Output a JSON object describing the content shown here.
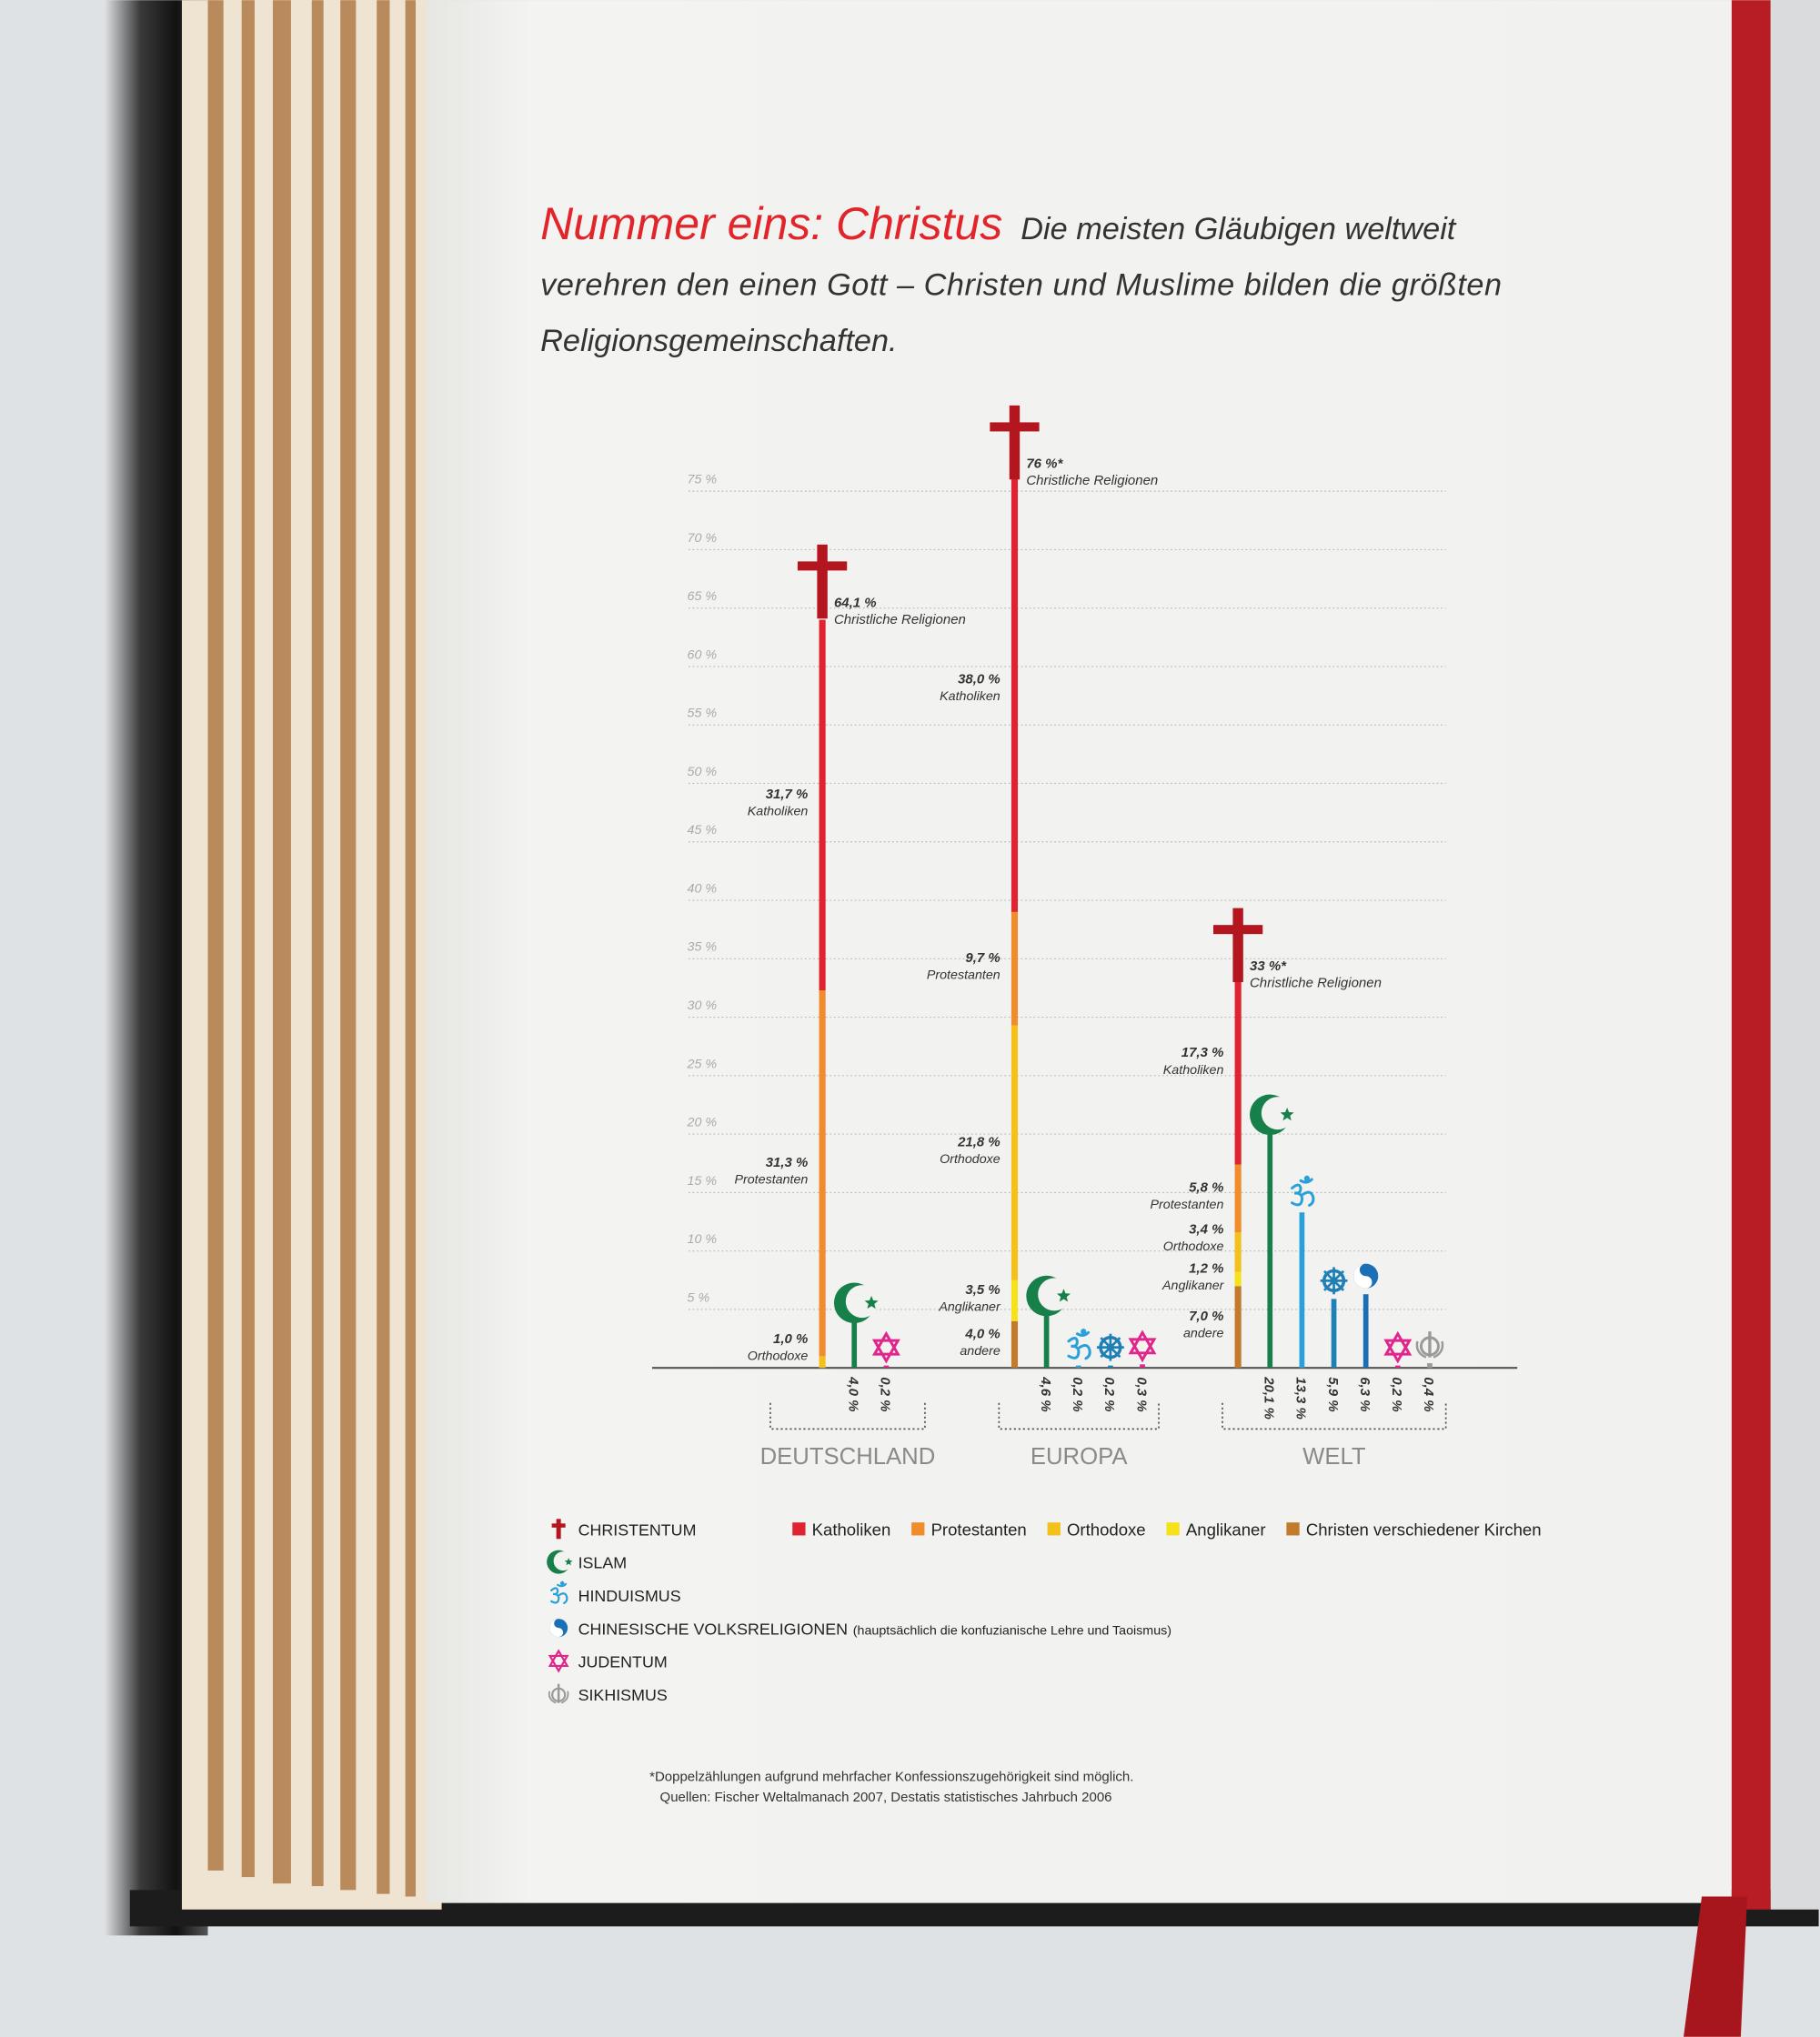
{
  "chart_data": {
    "type": "stacked-bar",
    "title": "Nummer eins: Christus",
    "subtitle": [
      "Die meisten Gläubigen weltweit",
      "verehren den einen Gott – Christen und Muslime bilden die größten",
      "Religionsgemeinschaften."
    ],
    "ylim": [
      0,
      75
    ],
    "yticks": [
      {
        "value": 5,
        "label": "5 %"
      },
      {
        "value": 10,
        "label": "10 %"
      },
      {
        "value": 15,
        "label": "15 %"
      },
      {
        "value": 20,
        "label": "20 %"
      },
      {
        "value": 25,
        "label": "25 %"
      },
      {
        "value": 30,
        "label": "30 %"
      },
      {
        "value": 35,
        "label": "35 %"
      },
      {
        "value": 40,
        "label": "40 %"
      },
      {
        "value": 45,
        "label": "45 %"
      },
      {
        "value": 50,
        "label": "50 %"
      },
      {
        "value": 55,
        "label": "55 %"
      },
      {
        "value": 60,
        "label": "60 %"
      },
      {
        "value": 65,
        "label": "65 %"
      },
      {
        "value": 70,
        "label": "70 %"
      },
      {
        "value": 75,
        "label": "75 %"
      }
    ],
    "grid": true,
    "groups": [
      {
        "name": "DEUTSCHLAND",
        "bars": [
          {
            "icon": "cross",
            "color": "#b3161f",
            "total": 64.1,
            "total_label": "64,1 %",
            "total_note": "Christliche Religionen",
            "segments": [
              {
                "value": 1.0,
                "value_label": "1,0 %",
                "label": "Orthodoxe",
                "color": "#f4c01c"
              },
              {
                "value": 31.3,
                "value_label": "31,3 %",
                "label": "Protestanten",
                "color": "#f08c2c"
              },
              {
                "value": 31.7,
                "value_label": "31,7 %",
                "label": "Katholiken",
                "color": "#e02331"
              }
            ]
          },
          {
            "icon": "crescent",
            "color": "#17804a",
            "value": 4.0,
            "value_label": "4,0 %"
          },
          {
            "icon": "star",
            "color": "#e0268c",
            "value": 0.2,
            "value_label": "0,2 %"
          }
        ]
      },
      {
        "name": "EUROPA",
        "bars": [
          {
            "icon": "cross",
            "color": "#b3161f",
            "total": 76,
            "total_label": "76 %*",
            "total_note": "Christliche Religionen",
            "segments": [
              {
                "value": 4.0,
                "value_label": "4,0 %",
                "label": "andere",
                "color": "#c27a2c"
              },
              {
                "value": 3.5,
                "value_label": "3,5 %",
                "label": "Anglikaner",
                "color": "#f6e21a"
              },
              {
                "value": 21.8,
                "value_label": "21,8 %",
                "label": "Orthodoxe",
                "color": "#f4c01c"
              },
              {
                "value": 9.7,
                "value_label": "9,7 %",
                "label": "Protestanten",
                "color": "#f08c2c"
              },
              {
                "value": 38.0,
                "value_label": "38,0 %",
                "label": "Katholiken",
                "color": "#e02331"
              }
            ]
          },
          {
            "icon": "crescent",
            "color": "#17804a",
            "value": 4.6,
            "value_label": "4,6 %"
          },
          {
            "icon": "om",
            "color": "#2aa0d8",
            "value": 0.2,
            "value_label": "0,2 %"
          },
          {
            "icon": "wheel",
            "color": "#1f7fb6",
            "value": 0.2,
            "value_label": "0,2 %"
          },
          {
            "icon": "star",
            "color": "#e0268c",
            "value": 0.3,
            "value_label": "0,3 %"
          }
        ]
      },
      {
        "name": "WELT",
        "bars": [
          {
            "icon": "cross",
            "color": "#b3161f",
            "total": 33,
            "total_label": "33 %*",
            "total_note": "Christliche Religionen",
            "segments": [
              {
                "value": 7.0,
                "value_label": "7,0 %",
                "label": "andere",
                "color": "#c27a2c"
              },
              {
                "value": 1.2,
                "value_label": "1,2 %",
                "label": "Anglikaner",
                "color": "#f6e21a"
              },
              {
                "value": 3.4,
                "value_label": "3,4 %",
                "label": "Orthodoxe",
                "color": "#f4c01c"
              },
              {
                "value": 5.8,
                "value_label": "5,8 %",
                "label": "Protestanten",
                "color": "#f08c2c"
              },
              {
                "value": 17.3,
                "value_label": "17,3 %",
                "label": "Katholiken",
                "color": "#e02331"
              }
            ]
          },
          {
            "icon": "crescent",
            "color": "#17804a",
            "value": 20.1,
            "value_label": "20,1 %"
          },
          {
            "icon": "om",
            "color": "#2aa0d8",
            "value": 13.3,
            "value_label": "13,3 %"
          },
          {
            "icon": "wheel",
            "color": "#1f7fb6",
            "value": 5.9,
            "value_label": "5,9 %"
          },
          {
            "icon": "yinyang",
            "color": "#1a6fb5",
            "value": 6.3,
            "value_label": "6,3 %"
          },
          {
            "icon": "star",
            "color": "#e0268c",
            "value": 0.2,
            "value_label": "0,2 %"
          },
          {
            "icon": "khanda",
            "color": "#9a9a9a",
            "value": 0.4,
            "value_label": "0,4 %"
          }
        ]
      }
    ],
    "denominations": [
      {
        "name": "Katholiken",
        "color": "#e02331"
      },
      {
        "name": "Protestanten",
        "color": "#f08c2c"
      },
      {
        "name": "Orthodoxe",
        "color": "#f4c01c"
      },
      {
        "name": "Anglikaner",
        "color": "#f6e21a"
      },
      {
        "name": "Christen verschiedener Kirchen",
        "color": "#c27a2c"
      }
    ],
    "religions": [
      {
        "name": "CHRISTENTUM",
        "icon": "cross",
        "color": "#b3161f"
      },
      {
        "name": "ISLAM",
        "icon": "crescent",
        "color": "#17804a"
      },
      {
        "name": "HINDUISMUS",
        "icon": "om",
        "color": "#2aa0d8"
      },
      {
        "name": "CHINESISCHE VOLKSRELIGIONEN",
        "note": "(hauptsächlich die konfuzianische Lehre und Taoismus)",
        "icon": "yinyang",
        "color": "#1a6fb5"
      },
      {
        "name": "JUDENTUM",
        "icon": "star",
        "color": "#e0268c"
      },
      {
        "name": "SIKHISMUS",
        "icon": "khanda",
        "color": "#9a9a9a"
      }
    ],
    "footnotes": [
      "*Doppelzählungen aufgrund mehrfacher Konfessionszugehörigkeit sind möglich.",
      "Quellen: Fischer Weltalmanach 2007, Destatis statistisches Jahrbuch 2006"
    ]
  }
}
